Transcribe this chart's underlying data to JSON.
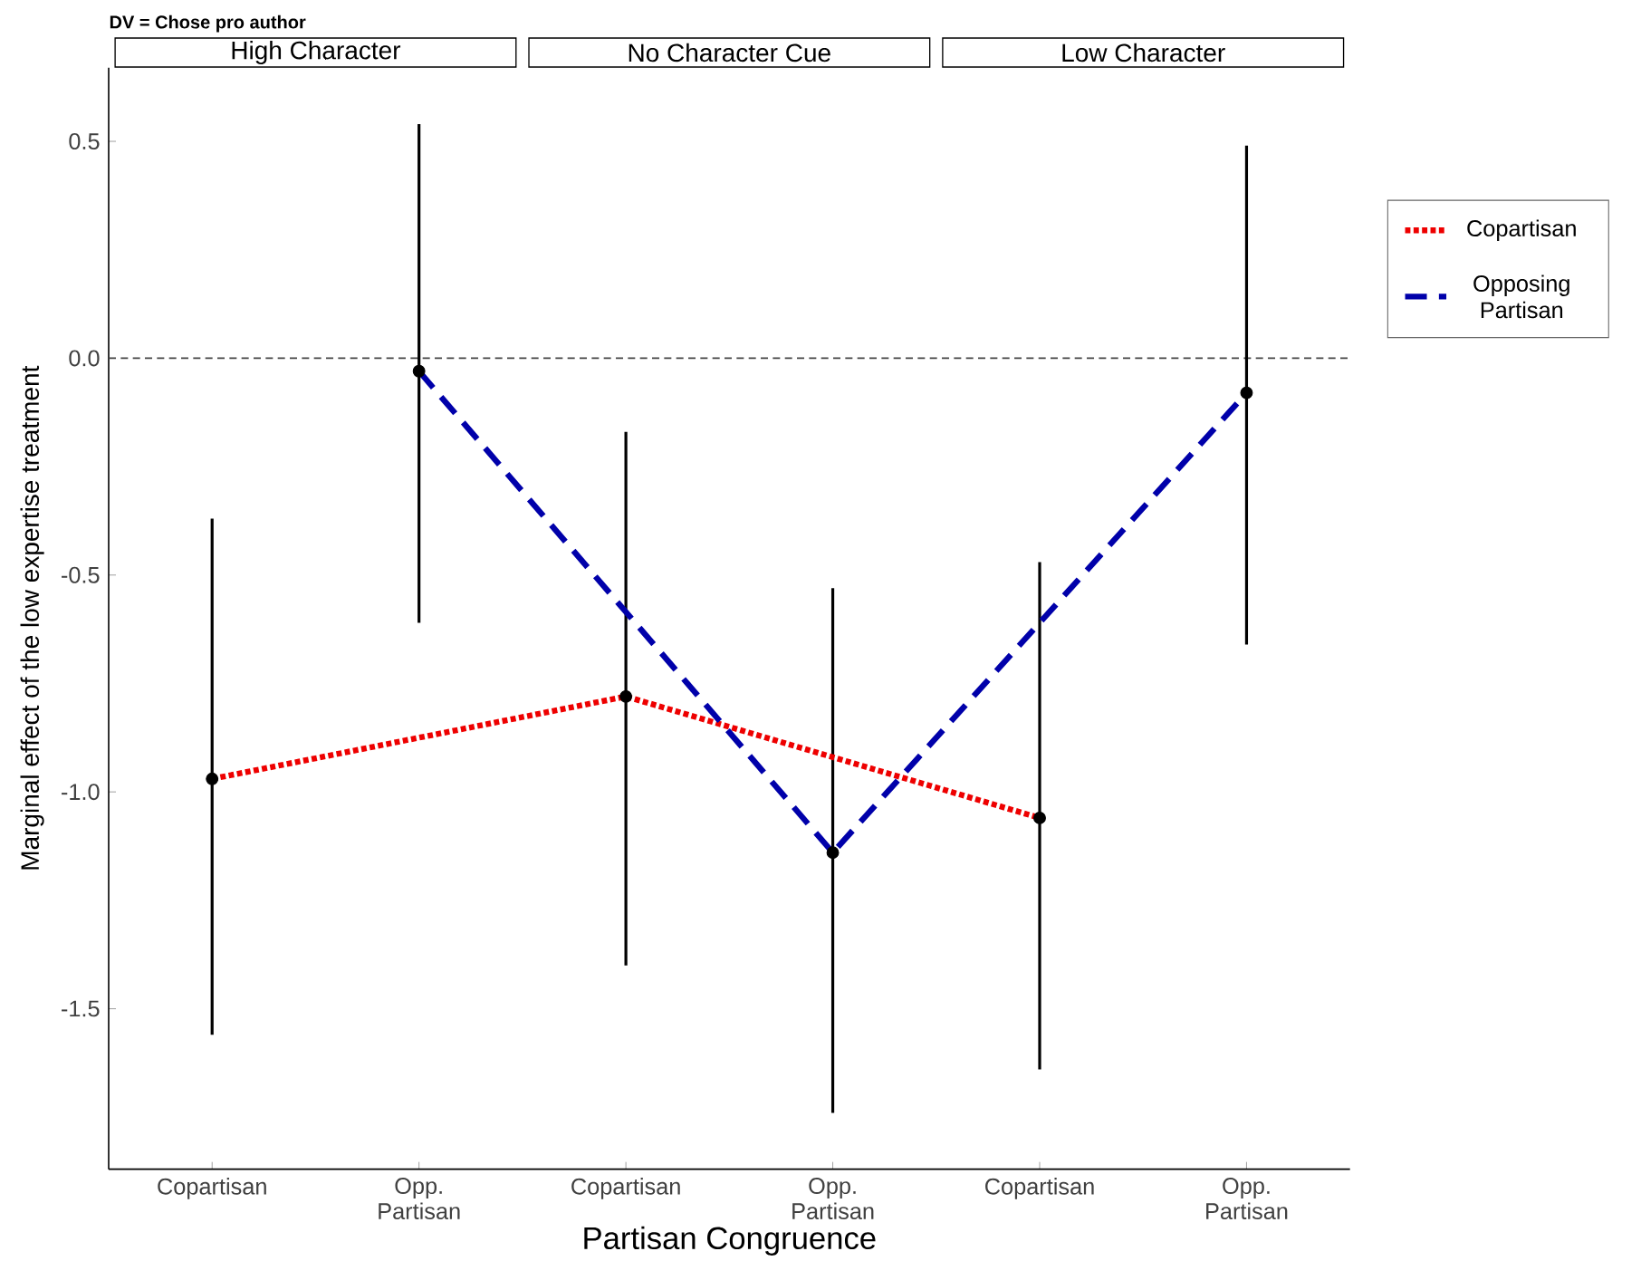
{
  "chart_data": {
    "type": "scatter",
    "annotations": [
      "**DV = Chose pro author**",
      "High Character",
      "No Character Cue",
      "Low Character"
    ],
    "xlabel": "Partisan Congruence",
    "ylabel": "Marginal effect of the low expertise treatment",
    "categories": [
      "Copartisan",
      "Opp. Partisan",
      "Copartisan",
      "Opp. Partisan",
      "Copartisan",
      "Opp. Partisan"
    ],
    "series": [
      {
        "color": "#000000",
        "values": [
          -0.97,
          -0.03,
          -0.78,
          -1.14,
          -1.06,
          -0.08
        ],
        "errors": [
          [
            -1.56,
            -0.37
          ],
          [
            -0.61,
            0.54
          ],
          [
            -1.4,
            -0.17
          ],
          [
            -1.74,
            -0.53
          ],
          [
            -1.64,
            -0.47
          ],
          [
            -0.66,
            0.49
          ]
        ]
      },
      {
        "type": "line",
        "name": "Copartisan",
        "color": "#ee0000",
        "line_style": "dotted",
        "values": [
          -0.97,
          null,
          -0.78,
          null,
          -1.06,
          null
        ]
      },
      {
        "type": "line",
        "name": "Opposing Partisan",
        "color": "#0000aa",
        "line_style": "dashed",
        "values": [
          null,
          -0.03,
          null,
          -1.14,
          null,
          -0.08
        ]
      }
    ],
    "ylim": [
      -1.87,
      0.67
    ],
    "yticks": [
      {
        "value": -1.5,
        "label": "-1.5"
      },
      {
        "value": -1,
        "label": "-1.0"
      },
      {
        "value": -0.5,
        "label": "-0.5"
      },
      {
        "value": 0,
        "label": "0.0"
      },
      0.5
    ],
    "ref_lines": [
      {
        "axis": "y",
        "value": 0,
        "color": "#444444",
        "line_style": "dashed"
      }
    ],
    "grid": false,
    "legend": "right"
  }
}
